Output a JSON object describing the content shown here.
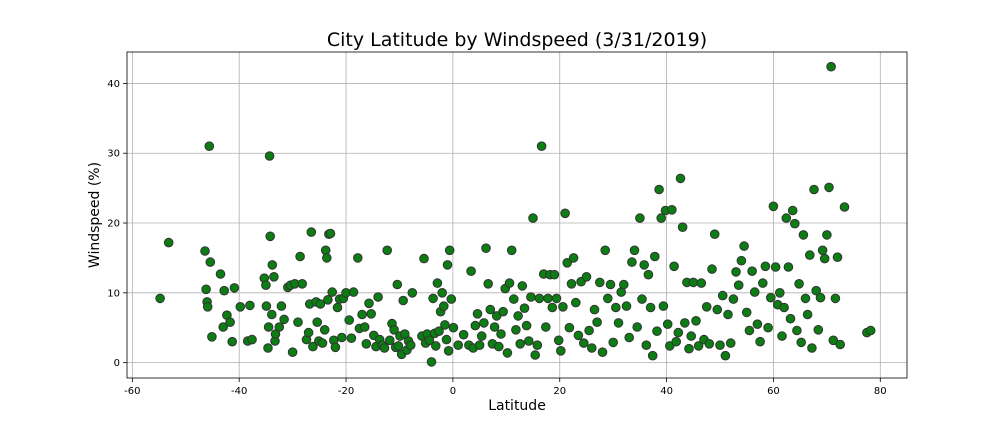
{
  "chart_data": {
    "type": "scatter",
    "title": "City Latitude by Windspeed (3/31/2019)",
    "xlabel": "Latitude",
    "ylabel": "Windspeed (%)",
    "xlim": [
      -61,
      85
    ],
    "ylim": [
      -2.2,
      44.5
    ],
    "xticks": [
      -60,
      -40,
      -20,
      0,
      20,
      40,
      60,
      80
    ],
    "yticks": [
      0,
      10,
      20,
      30,
      40
    ],
    "grid": true,
    "marker_color": "#0b7d12",
    "marker_edge": "#333333",
    "points": [
      [
        -54.8,
        9.2
      ],
      [
        -53.2,
        17.2
      ],
      [
        -46.4,
        16.0
      ],
      [
        -46.2,
        10.5
      ],
      [
        -46.0,
        8.7
      ],
      [
        -45.9,
        8.0
      ],
      [
        -45.6,
        31.0
      ],
      [
        -45.4,
        14.4
      ],
      [
        -45.1,
        3.7
      ],
      [
        -43.5,
        12.7
      ],
      [
        -43.0,
        5.1
      ],
      [
        -42.8,
        10.3
      ],
      [
        -42.3,
        6.8
      ],
      [
        -41.7,
        5.8
      ],
      [
        -41.3,
        3.0
      ],
      [
        -40.9,
        10.7
      ],
      [
        -39.8,
        8.0
      ],
      [
        -38.4,
        3.1
      ],
      [
        -38.0,
        8.2
      ],
      [
        -37.6,
        3.3
      ],
      [
        -35.3,
        12.1
      ],
      [
        -35.0,
        11.1
      ],
      [
        -34.9,
        8.1
      ],
      [
        -34.6,
        2.1
      ],
      [
        -34.5,
        5.1
      ],
      [
        -34.3,
        29.6
      ],
      [
        -34.2,
        18.1
      ],
      [
        -33.9,
        6.9
      ],
      [
        -33.8,
        14.0
      ],
      [
        -33.5,
        12.3
      ],
      [
        -33.3,
        3.1
      ],
      [
        -33.2,
        4.1
      ],
      [
        -32.5,
        5.1
      ],
      [
        -32.1,
        8.1
      ],
      [
        -31.6,
        6.2
      ],
      [
        -30.9,
        10.8
      ],
      [
        -30.4,
        11.1
      ],
      [
        -30.0,
        1.5
      ],
      [
        -29.6,
        11.3
      ],
      [
        -29.0,
        5.8
      ],
      [
        -28.6,
        15.2
      ],
      [
        -28.2,
        11.3
      ],
      [
        -27.4,
        3.3
      ],
      [
        -27.0,
        4.3
      ],
      [
        -26.8,
        8.4
      ],
      [
        -26.5,
        18.7
      ],
      [
        -26.2,
        2.3
      ],
      [
        -25.6,
        8.7
      ],
      [
        -25.4,
        5.8
      ],
      [
        -25.1,
        3.1
      ],
      [
        -24.8,
        8.4
      ],
      [
        -24.4,
        2.8
      ],
      [
        -24.0,
        4.7
      ],
      [
        -23.8,
        16.1
      ],
      [
        -23.6,
        15.0
      ],
      [
        -23.4,
        9.0
      ],
      [
        -23.2,
        18.4
      ],
      [
        -22.9,
        18.5
      ],
      [
        -22.6,
        10.1
      ],
      [
        -22.3,
        3.2
      ],
      [
        -22.0,
        2.2
      ],
      [
        -21.6,
        7.9
      ],
      [
        -21.2,
        9.1
      ],
      [
        -20.8,
        3.6
      ],
      [
        -20.5,
        9.2
      ],
      [
        -20.0,
        10.0
      ],
      [
        -19.4,
        6.1
      ],
      [
        -19.0,
        3.5
      ],
      [
        -18.6,
        10.1
      ],
      [
        -17.8,
        15.0
      ],
      [
        -17.5,
        4.9
      ],
      [
        -17.0,
        6.9
      ],
      [
        -16.5,
        5.1
      ],
      [
        -16.2,
        2.7
      ],
      [
        -15.7,
        8.5
      ],
      [
        -15.3,
        7.0
      ],
      [
        -14.8,
        3.9
      ],
      [
        -14.4,
        2.3
      ],
      [
        -14.0,
        9.4
      ],
      [
        -13.7,
        3.3
      ],
      [
        -13.2,
        2.5
      ],
      [
        -12.8,
        2.1
      ],
      [
        -12.3,
        16.1
      ],
      [
        -11.8,
        3.2
      ],
      [
        -11.4,
        5.6
      ],
      [
        -11.0,
        4.7
      ],
      [
        -10.7,
        2.2
      ],
      [
        -10.4,
        11.2
      ],
      [
        -10.2,
        2.4
      ],
      [
        -9.9,
        3.8
      ],
      [
        -9.6,
        1.2
      ],
      [
        -9.3,
        8.9
      ],
      [
        -9.0,
        4.1
      ],
      [
        -8.6,
        1.8
      ],
      [
        -8.3,
        3.1
      ],
      [
        -7.9,
        2.5
      ],
      [
        -7.6,
        10.0
      ],
      [
        -5.8,
        3.8
      ],
      [
        -5.4,
        14.9
      ],
      [
        -5.1,
        2.8
      ],
      [
        -4.8,
        4.1
      ],
      [
        -4.4,
        3.2
      ],
      [
        -4.0,
        0.1
      ],
      [
        -3.7,
        9.2
      ],
      [
        -3.4,
        4.2
      ],
      [
        -3.2,
        2.4
      ],
      [
        -2.9,
        11.4
      ],
      [
        -2.6,
        4.5
      ],
      [
        -2.3,
        7.3
      ],
      [
        -2.0,
        10.0
      ],
      [
        -1.7,
        8.1
      ],
      [
        -1.5,
        5.4
      ],
      [
        -1.2,
        3.3
      ],
      [
        -1.0,
        14.0
      ],
      [
        -0.8,
        1.7
      ],
      [
        -0.6,
        16.1
      ],
      [
        -0.3,
        9.1
      ],
      [
        0.1,
        5.0
      ],
      [
        1.0,
        2.5
      ],
      [
        2.0,
        4.0
      ],
      [
        3.0,
        2.5
      ],
      [
        3.4,
        13.1
      ],
      [
        3.8,
        2.1
      ],
      [
        4.2,
        5.3
      ],
      [
        4.6,
        7.0
      ],
      [
        5.0,
        2.5
      ],
      [
        5.4,
        3.8
      ],
      [
        5.8,
        5.7
      ],
      [
        6.2,
        16.4
      ],
      [
        6.6,
        11.3
      ],
      [
        7.0,
        7.6
      ],
      [
        7.4,
        2.7
      ],
      [
        7.8,
        5.1
      ],
      [
        8.2,
        6.7
      ],
      [
        8.6,
        2.3
      ],
      [
        9.0,
        4.1
      ],
      [
        9.4,
        7.3
      ],
      [
        9.8,
        10.6
      ],
      [
        10.2,
        1.4
      ],
      [
        10.6,
        11.4
      ],
      [
        11.0,
        16.1
      ],
      [
        11.4,
        9.1
      ],
      [
        11.8,
        4.7
      ],
      [
        12.2,
        6.7
      ],
      [
        12.6,
        2.7
      ],
      [
        13.0,
        11.0
      ],
      [
        13.4,
        7.8
      ],
      [
        13.8,
        5.3
      ],
      [
        14.2,
        3.1
      ],
      [
        14.6,
        9.4
      ],
      [
        15.0,
        20.7
      ],
      [
        15.4,
        1.1
      ],
      [
        15.8,
        2.5
      ],
      [
        16.2,
        9.2
      ],
      [
        16.6,
        31.0
      ],
      [
        17.0,
        12.7
      ],
      [
        17.4,
        5.1
      ],
      [
        17.8,
        9.2
      ],
      [
        18.2,
        12.6
      ],
      [
        18.6,
        7.9
      ],
      [
        19.0,
        12.6
      ],
      [
        19.4,
        9.2
      ],
      [
        19.8,
        3.2
      ],
      [
        20.2,
        1.7
      ],
      [
        20.6,
        8.0
      ],
      [
        21.0,
        21.4
      ],
      [
        21.4,
        14.3
      ],
      [
        21.8,
        5.0
      ],
      [
        22.2,
        11.3
      ],
      [
        22.6,
        15.0
      ],
      [
        23.0,
        8.6
      ],
      [
        23.5,
        3.9
      ],
      [
        24.0,
        11.6
      ],
      [
        24.5,
        2.8
      ],
      [
        25.0,
        12.3
      ],
      [
        25.5,
        4.6
      ],
      [
        26.0,
        2.1
      ],
      [
        26.5,
        7.6
      ],
      [
        27.0,
        5.8
      ],
      [
        27.5,
        11.5
      ],
      [
        28.0,
        1.5
      ],
      [
        28.5,
        16.1
      ],
      [
        29.0,
        9.2
      ],
      [
        29.5,
        11.2
      ],
      [
        30.0,
        2.9
      ],
      [
        30.5,
        7.9
      ],
      [
        31.0,
        5.7
      ],
      [
        31.5,
        10.1
      ],
      [
        32.0,
        11.2
      ],
      [
        32.5,
        8.1
      ],
      [
        33.0,
        3.6
      ],
      [
        33.5,
        14.4
      ],
      [
        34.0,
        16.1
      ],
      [
        34.5,
        5.1
      ],
      [
        35.0,
        20.7
      ],
      [
        35.4,
        9.1
      ],
      [
        35.8,
        14.0
      ],
      [
        36.2,
        2.5
      ],
      [
        36.6,
        12.6
      ],
      [
        37.0,
        7.9
      ],
      [
        37.4,
        1.0
      ],
      [
        37.8,
        15.2
      ],
      [
        38.2,
        4.5
      ],
      [
        38.6,
        24.8
      ],
      [
        39.0,
        20.7
      ],
      [
        39.4,
        8.1
      ],
      [
        39.8,
        21.8
      ],
      [
        40.2,
        5.5
      ],
      [
        40.6,
        2.4
      ],
      [
        41.0,
        21.9
      ],
      [
        41.4,
        13.8
      ],
      [
        41.8,
        3.0
      ],
      [
        42.2,
        4.3
      ],
      [
        42.6,
        26.4
      ],
      [
        43.0,
        19.4
      ],
      [
        43.4,
        5.7
      ],
      [
        43.8,
        11.5
      ],
      [
        44.2,
        2.0
      ],
      [
        44.6,
        3.8
      ],
      [
        45.0,
        11.5
      ],
      [
        45.5,
        6.0
      ],
      [
        46.0,
        2.4
      ],
      [
        46.5,
        11.4
      ],
      [
        47.0,
        3.3
      ],
      [
        47.5,
        8.0
      ],
      [
        48.0,
        2.7
      ],
      [
        48.5,
        13.4
      ],
      [
        49.0,
        18.4
      ],
      [
        49.5,
        7.6
      ],
      [
        50.0,
        2.5
      ],
      [
        50.5,
        9.6
      ],
      [
        51.0,
        1.0
      ],
      [
        51.5,
        6.9
      ],
      [
        52.0,
        2.8
      ],
      [
        52.5,
        9.1
      ],
      [
        53.0,
        13.0
      ],
      [
        53.5,
        11.1
      ],
      [
        54.0,
        14.6
      ],
      [
        54.5,
        16.7
      ],
      [
        55.0,
        7.2
      ],
      [
        55.5,
        4.6
      ],
      [
        56.0,
        13.1
      ],
      [
        56.5,
        10.1
      ],
      [
        57.0,
        5.5
      ],
      [
        57.5,
        3.0
      ],
      [
        58.0,
        11.4
      ],
      [
        58.5,
        13.8
      ],
      [
        59.0,
        5.0
      ],
      [
        59.5,
        9.3
      ],
      [
        60.0,
        22.4
      ],
      [
        60.4,
        13.7
      ],
      [
        60.8,
        8.3
      ],
      [
        61.2,
        10.0
      ],
      [
        61.6,
        3.8
      ],
      [
        62.0,
        7.9
      ],
      [
        62.4,
        20.7
      ],
      [
        62.8,
        13.7
      ],
      [
        63.2,
        6.3
      ],
      [
        63.6,
        21.8
      ],
      [
        64.0,
        19.9
      ],
      [
        64.4,
        4.6
      ],
      [
        64.8,
        11.3
      ],
      [
        65.2,
        2.9
      ],
      [
        65.6,
        18.3
      ],
      [
        66.0,
        9.2
      ],
      [
        66.4,
        6.9
      ],
      [
        66.8,
        15.4
      ],
      [
        67.2,
        2.1
      ],
      [
        67.6,
        24.8
      ],
      [
        68.0,
        10.3
      ],
      [
        68.4,
        4.7
      ],
      [
        68.8,
        9.3
      ],
      [
        69.2,
        16.1
      ],
      [
        69.6,
        14.9
      ],
      [
        70.0,
        18.3
      ],
      [
        70.4,
        25.1
      ],
      [
        70.8,
        42.4
      ],
      [
        71.2,
        3.2
      ],
      [
        71.6,
        9.2
      ],
      [
        72.0,
        15.1
      ],
      [
        72.5,
        2.6
      ],
      [
        73.3,
        22.3
      ],
      [
        77.5,
        4.3
      ],
      [
        78.2,
        4.6
      ]
    ]
  }
}
